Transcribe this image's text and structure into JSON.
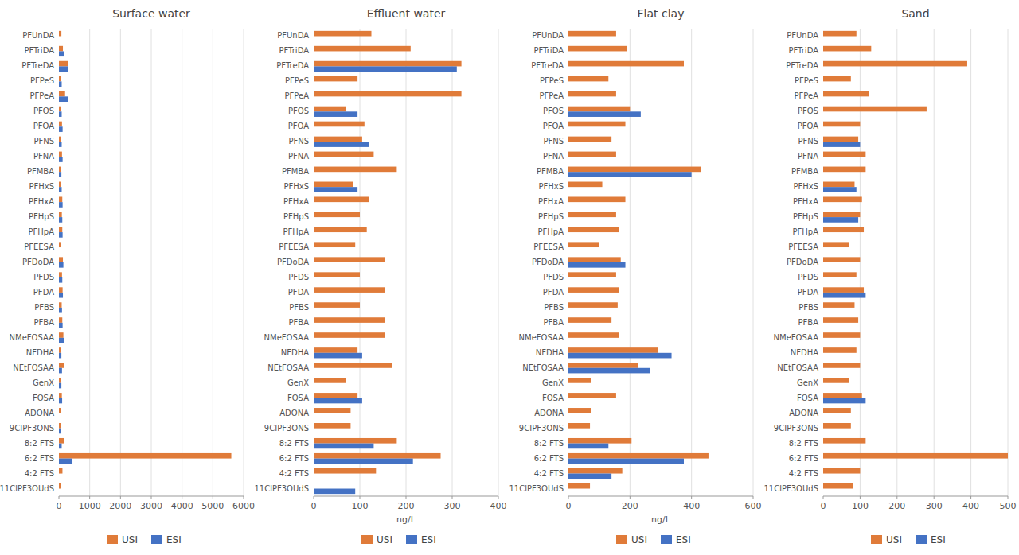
{
  "chart_data": [
    {
      "type": "bar",
      "orientation": "horizontal",
      "title": "Surface water",
      "categories": [
        "PFUnDA",
        "PFTriDA",
        "PFTreDA",
        "PFPeS",
        "PFPeA",
        "PFOS",
        "PFOA",
        "PFNS",
        "PFNA",
        "PFMBA",
        "PFHxS",
        "PFHxA",
        "PFHpS",
        "PFHpA",
        "PFEESA",
        "PFDoDA",
        "PFDS",
        "PFDA",
        "PFBS",
        "PFBA",
        "NMeFOSAA",
        "NFDHA",
        "NEtFOSAA",
        "GenX",
        "FOSA",
        "ADONA",
        "9CIPF3ONS",
        "8:2 FTS",
        "6:2 FTS",
        "4:2 FTS",
        "11ClPF3OUdS"
      ],
      "series": [
        {
          "name": "USI",
          "color": "#E07B39",
          "values": [
            80,
            130,
            290,
            75,
            200,
            75,
            100,
            75,
            100,
            70,
            75,
            110,
            95,
            110,
            60,
            130,
            100,
            120,
            90,
            110,
            145,
            70,
            160,
            65,
            95,
            60,
            60,
            160,
            5600,
            115,
            70
          ]
        },
        {
          "name": "ESI",
          "color": "#4472C4",
          "values": [
            0,
            155,
            310,
            90,
            290,
            90,
            120,
            90,
            120,
            80,
            90,
            120,
            110,
            120,
            0,
            145,
            110,
            130,
            100,
            120,
            155,
            80,
            100,
            80,
            105,
            0,
            75,
            90,
            440,
            0,
            0
          ]
        }
      ],
      "xlim": [
        0,
        6000
      ],
      "xticks": [
        0,
        1000,
        2000,
        3000,
        4000,
        5000,
        6000
      ],
      "grid": true,
      "legend": "bottom"
    },
    {
      "type": "bar",
      "orientation": "horizontal",
      "title": "Effluent water",
      "xlabel": "ng/L",
      "categories": [
        "PFUnDA",
        "PFTriDA",
        "PFTreDA",
        "PFPeS",
        "PFPeA",
        "PFOS",
        "PFOA",
        "PFNS",
        "PFNA",
        "PFMBA",
        "PFHxS",
        "PFHxA",
        "PFHpS",
        "PFHpA",
        "PFEESA",
        "PFDoDA",
        "PFDS",
        "PFDA",
        "PFBS",
        "PFBA",
        "NMeFOSAA",
        "NFDHA",
        "NEtFOSAA",
        "GenX",
        "FOSA",
        "ADONA",
        "9CIPF3ONS",
        "8:2 FTS",
        "6:2 FTS",
        "4:2 FTS",
        "11ClPF3OUdS"
      ],
      "series": [
        {
          "name": "USI",
          "color": "#E07B39",
          "values": [
            125,
            210,
            320,
            95,
            320,
            70,
            110,
            105,
            130,
            180,
            85,
            120,
            100,
            115,
            90,
            155,
            100,
            155,
            100,
            155,
            155,
            95,
            170,
            70,
            95,
            80,
            80,
            180,
            275,
            135,
            0
          ]
        },
        {
          "name": "ESI",
          "color": "#4472C4",
          "values": [
            0,
            0,
            310,
            0,
            0,
            95,
            0,
            120,
            0,
            0,
            95,
            0,
            0,
            0,
            0,
            0,
            0,
            0,
            0,
            0,
            0,
            105,
            0,
            0,
            105,
            0,
            0,
            130,
            215,
            0,
            90
          ]
        }
      ],
      "xlim": [
        0,
        400
      ],
      "xticks": [
        0,
        100,
        200,
        300,
        400
      ],
      "grid": true,
      "legend": "bottom"
    },
    {
      "type": "bar",
      "orientation": "horizontal",
      "title": "Flat clay",
      "xlabel": "ng/L",
      "categories": [
        "PFUnDA",
        "PFTriDA",
        "PFTreDA",
        "PFPeS",
        "PFPeA",
        "PFOS",
        "PFOA",
        "PFNS",
        "PFNA",
        "PFMBA",
        "PFHxS",
        "PFHxA",
        "PFHpS",
        "PFHpA",
        "PFEESA",
        "PFDoDA",
        "PFDS",
        "PFDA",
        "PFBS",
        "PFBA",
        "NMeFOSAA",
        "NFDHA",
        "NEtFOSAA",
        "GenX",
        "FOSA",
        "ADONA",
        "9CIPF3ONS",
        "8:2 FTS",
        "6:2 FTS",
        "4:2 FTS",
        "11ClPF3OUdS"
      ],
      "series": [
        {
          "name": "USI",
          "color": "#E07B39",
          "values": [
            155,
            190,
            375,
            130,
            155,
            200,
            185,
            140,
            155,
            430,
            110,
            185,
            155,
            165,
            100,
            170,
            155,
            165,
            160,
            140,
            165,
            290,
            225,
            75,
            155,
            75,
            70,
            205,
            455,
            175,
            70
          ]
        },
        {
          "name": "ESI",
          "color": "#4472C4",
          "values": [
            0,
            0,
            0,
            0,
            0,
            235,
            0,
            0,
            0,
            400,
            0,
            0,
            0,
            0,
            0,
            185,
            0,
            0,
            0,
            0,
            0,
            335,
            265,
            0,
            0,
            0,
            0,
            130,
            375,
            140,
            0
          ]
        }
      ],
      "xlim": [
        0,
        600
      ],
      "xticks": [
        0,
        200,
        400,
        600
      ],
      "grid": true,
      "legend": "bottom"
    },
    {
      "type": "bar",
      "orientation": "horizontal",
      "title": "Sand",
      "categories": [
        "PFUnDA",
        "PFTriDA",
        "PFTreDA",
        "PFPeS",
        "PFPeA",
        "PFOS",
        "PFOA",
        "PFNS",
        "PFNA",
        "PFMBA",
        "PFHxS",
        "PFHxA",
        "PFHpS",
        "PFHpA",
        "PFEESA",
        "PFDoDA",
        "PFDS",
        "PFDA",
        "PFBS",
        "PFBA",
        "NMeFOSAA",
        "NFDHA",
        "NEtFOSAA",
        "GenX",
        "FOSA",
        "ADONA",
        "9CIPF3ONS",
        "8:2 FTS",
        "6:2 FTS",
        "4:2 FTS",
        "11ClPF3OUdS"
      ],
      "series": [
        {
          "name": "USI",
          "color": "#E07B39",
          "values": [
            90,
            130,
            390,
            75,
            125,
            280,
            100,
            95,
            115,
            115,
            85,
            105,
            100,
            110,
            70,
            100,
            90,
            110,
            85,
            95,
            100,
            90,
            100,
            70,
            105,
            75,
            75,
            115,
            500,
            100,
            80
          ]
        },
        {
          "name": "ESI",
          "color": "#4472C4",
          "values": [
            0,
            0,
            0,
            0,
            0,
            0,
            0,
            100,
            0,
            0,
            90,
            0,
            95,
            0,
            0,
            0,
            0,
            115,
            0,
            0,
            0,
            0,
            0,
            0,
            115,
            0,
            0,
            0,
            0,
            0,
            0
          ]
        }
      ],
      "xlim": [
        0,
        500
      ],
      "xticks": [
        0,
        100,
        200,
        300,
        400,
        500
      ],
      "grid": true,
      "legend": "bottom"
    }
  ]
}
